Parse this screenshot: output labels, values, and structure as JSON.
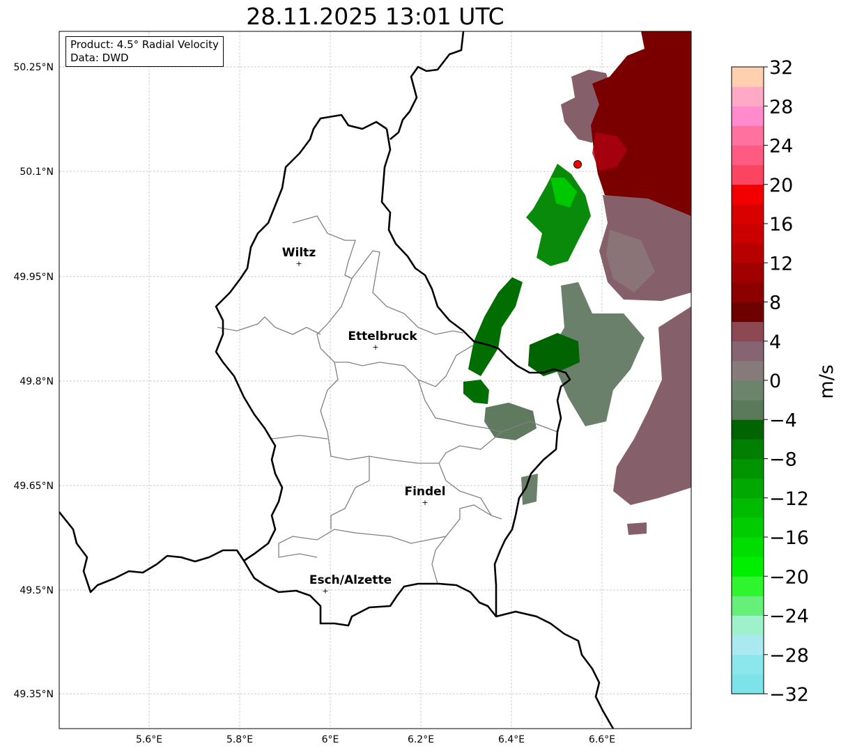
{
  "title": "28.11.2025 13:01 UTC",
  "info_box": {
    "product": "Product: 4.5° Radial Velocity",
    "data": "Data: DWD"
  },
  "axes": {
    "lon_ticks": [
      "5.6°E",
      "5.8°E",
      "6°E",
      "6.2°E",
      "6.4°E",
      "6.6°E"
    ],
    "lat_ticks": [
      "50.25°N",
      "50.1°N",
      "49.95°N",
      "49.8°N",
      "49.65°N",
      "49.5°N",
      "49.35°N"
    ]
  },
  "cities": [
    "Wiltz",
    "Ettelbruck",
    "Findel",
    "Esch/Alzette"
  ],
  "colorbar": {
    "label": "m/s",
    "range": [
      -32,
      32
    ],
    "tick_labels": [
      "32",
      "28",
      "24",
      "20",
      "16",
      "12",
      "8",
      "4",
      "0",
      "−4",
      "−8",
      "−12",
      "−16",
      "−20",
      "−24",
      "−28",
      "−32"
    ],
    "colors_bottom_to_top": [
      "#7be3e9",
      "#8ce7ec",
      "#a9e9ef",
      "#9df2cb",
      "#66f07a",
      "#2ef52e",
      "#00ee00",
      "#00dd00",
      "#00cc00",
      "#00bb00",
      "#00a800",
      "#009400",
      "#007f00",
      "#006400",
      "#5a7a5a",
      "#6b846b",
      "#867a7a",
      "#876471",
      "#8c4952",
      "#6e0000",
      "#8c0000",
      "#a10000",
      "#b70000",
      "#cb0000",
      "#d90000",
      "#f20000",
      "#fb4460",
      "#fe5a82",
      "#ff72a0",
      "#ff8acc",
      "#ffa9c6",
      "#ffd0b0"
    ]
  },
  "colors": {
    "dark_red": "#7a0000",
    "red": "#b00010",
    "mauve": "#85606a",
    "gray_green": "#6a806a",
    "dark_green": "#006400",
    "green": "#0a9a0a",
    "radar_site": "#ff0000"
  }
}
